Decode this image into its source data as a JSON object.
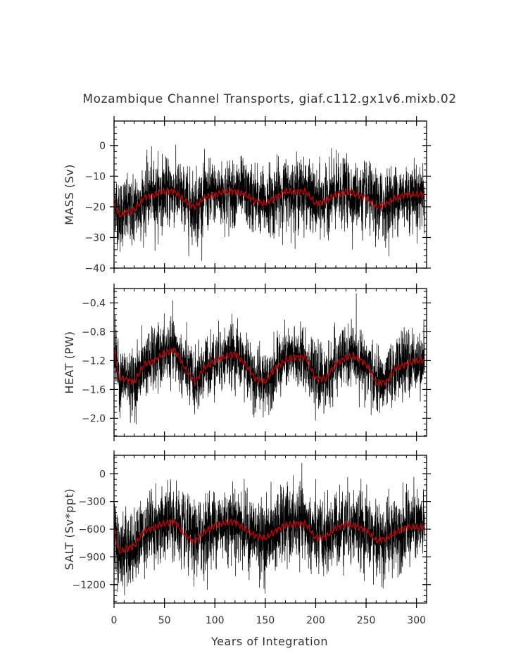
{
  "page": {
    "title": "Mozambique Channel Transports, giaf.c112.gx1v6.mixb.02"
  },
  "colors": {
    "raw_series": "#000000",
    "smoothed_series": "#cc0000",
    "axes": "#000000",
    "text": "#333333",
    "background": "#ffffff"
  },
  "chart_data": [
    {
      "type": "line",
      "ylabel": "MASS (Sv)",
      "xlabel": "",
      "xlim": [
        0,
        310
      ],
      "ylim": [
        -40,
        8
      ],
      "yticks": [
        0,
        -10,
        -20,
        -30,
        -40
      ],
      "ytick_labels": [
        "0",
        "−10",
        "−20",
        "−30",
        "−40"
      ],
      "xticks": [
        0,
        50,
        100,
        150,
        200,
        250,
        300
      ],
      "series": [
        {
          "role": "raw monthly",
          "color": "#000000",
          "mean": -17.5,
          "noise_sd": 5.2,
          "x_start": 0,
          "x_end": 308,
          "points_per_year": 12
        },
        {
          "role": "smoothed",
          "color": "#cc0000",
          "x": [
            0,
            5,
            10,
            20,
            30,
            40,
            50,
            60,
            70,
            80,
            90,
            100,
            110,
            120,
            130,
            140,
            150,
            160,
            170,
            180,
            190,
            200,
            210,
            220,
            230,
            240,
            250,
            260,
            270,
            280,
            290,
            300,
            308
          ],
          "y": [
            -18,
            -23,
            -22,
            -21,
            -17,
            -16,
            -15,
            -15,
            -18,
            -20,
            -17,
            -16,
            -15,
            -15,
            -16,
            -18,
            -19,
            -17,
            -15,
            -15,
            -15,
            -19,
            -18,
            -16,
            -15,
            -16,
            -17,
            -20,
            -19,
            -17,
            -16,
            -16,
            -16
          ]
        }
      ]
    },
    {
      "type": "line",
      "ylabel": "HEAT (PW)",
      "xlabel": "",
      "xlim": [
        0,
        310
      ],
      "ylim": [
        -2.25,
        -0.2
      ],
      "yticks": [
        -0.4,
        -0.8,
        -1.2,
        -1.6,
        -2.0
      ],
      "ytick_labels": [
        "−0.4",
        "−0.8",
        "−1.2",
        "−1.6",
        "−2.0"
      ],
      "xticks": [
        0,
        50,
        100,
        150,
        200,
        250,
        300
      ],
      "series": [
        {
          "role": "raw monthly",
          "color": "#000000",
          "mean": -1.3,
          "noise_sd": 0.2,
          "x_start": 0,
          "x_end": 308,
          "points_per_year": 12
        },
        {
          "role": "smoothed",
          "color": "#cc0000",
          "x": [
            0,
            5,
            10,
            20,
            30,
            40,
            50,
            60,
            70,
            80,
            90,
            100,
            110,
            120,
            130,
            140,
            150,
            160,
            170,
            180,
            190,
            200,
            210,
            220,
            230,
            240,
            250,
            260,
            270,
            280,
            290,
            300,
            308
          ],
          "y": [
            -1.05,
            -1.45,
            -1.45,
            -1.5,
            -1.25,
            -1.2,
            -1.1,
            -1.05,
            -1.3,
            -1.5,
            -1.3,
            -1.2,
            -1.15,
            -1.1,
            -1.25,
            -1.45,
            -1.5,
            -1.3,
            -1.2,
            -1.15,
            -1.15,
            -1.45,
            -1.45,
            -1.25,
            -1.15,
            -1.15,
            -1.25,
            -1.5,
            -1.5,
            -1.3,
            -1.25,
            -1.2,
            -1.2
          ]
        }
      ]
    },
    {
      "type": "line",
      "ylabel": "SALT (Sv*ppt)",
      "xlabel": "Years of Integration",
      "xlim": [
        0,
        310
      ],
      "ylim": [
        -1400,
        200
      ],
      "yticks": [
        0,
        -300,
        -600,
        -900,
        -1200
      ],
      "ytick_labels": [
        "0",
        "−300",
        "−600",
        "−900",
        "−1200"
      ],
      "xticks": [
        0,
        50,
        100,
        150,
        200,
        250,
        300
      ],
      "xtick_labels": [
        "0",
        "50",
        "100",
        "150",
        "200",
        "250",
        "300"
      ],
      "series": [
        {
          "role": "raw monthly",
          "color": "#000000",
          "mean": -620,
          "noise_sd": 190,
          "x_start": 0,
          "x_end": 308,
          "points_per_year": 12
        },
        {
          "role": "smoothed",
          "color": "#cc0000",
          "x": [
            0,
            5,
            10,
            20,
            30,
            40,
            50,
            60,
            70,
            80,
            90,
            100,
            110,
            120,
            130,
            140,
            150,
            160,
            170,
            180,
            190,
            200,
            210,
            220,
            230,
            240,
            250,
            260,
            270,
            280,
            290,
            300,
            308
          ],
          "y": [
            -600,
            -850,
            -820,
            -780,
            -620,
            -580,
            -540,
            -520,
            -660,
            -740,
            -630,
            -560,
            -530,
            -520,
            -600,
            -670,
            -700,
            -620,
            -560,
            -540,
            -540,
            -700,
            -680,
            -590,
            -540,
            -570,
            -610,
            -720,
            -700,
            -630,
            -580,
            -580,
            -580
          ]
        }
      ]
    }
  ]
}
